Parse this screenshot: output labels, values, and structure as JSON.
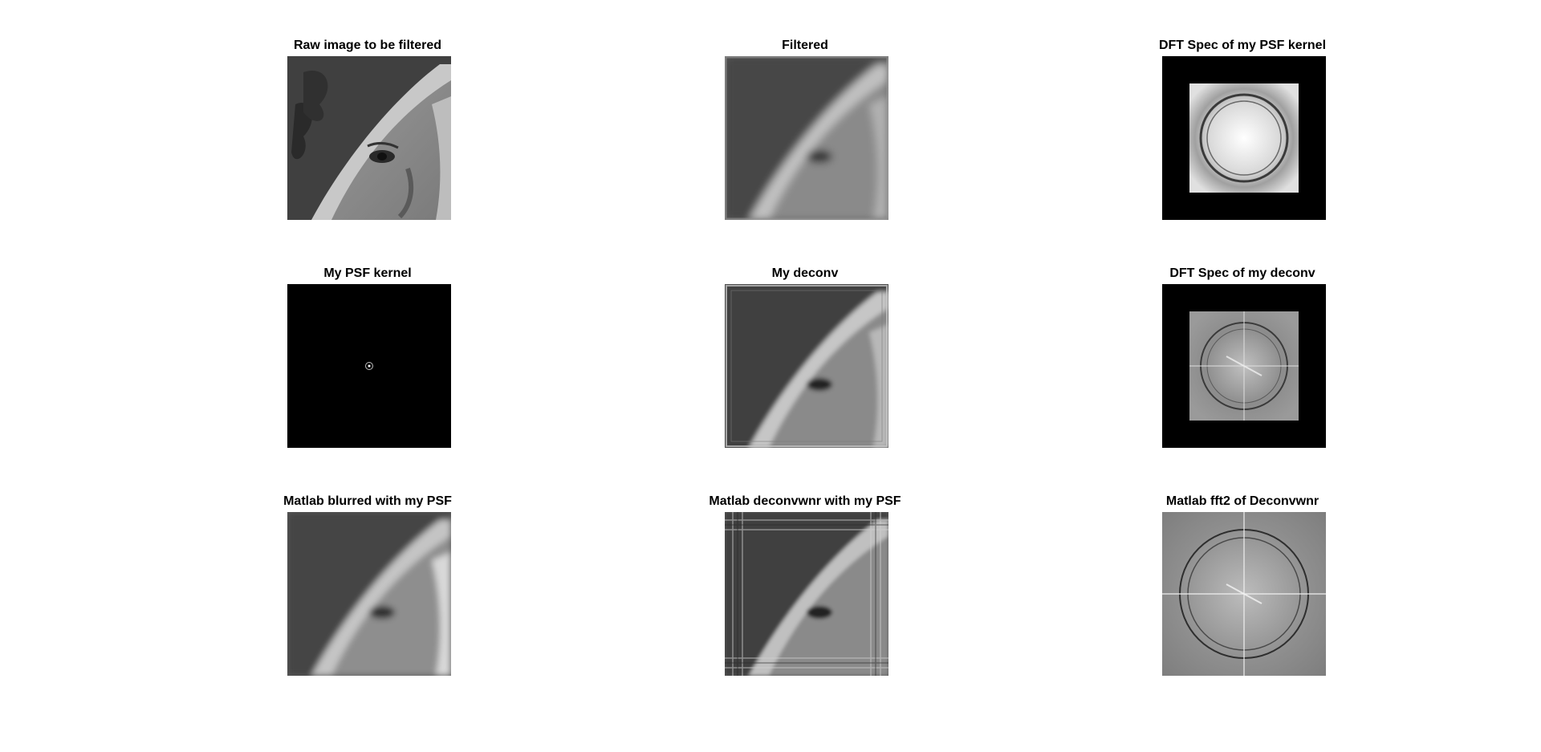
{
  "figure": {
    "panels": [
      {
        "title": "Raw image to be filtered"
      },
      {
        "title": "Filtered"
      },
      {
        "title": "DFT Spec of my PSF kernel"
      },
      {
        "title": "My PSF kernel"
      },
      {
        "title": "My deconv"
      },
      {
        "title": "DFT Spec of my deconv"
      },
      {
        "title": "Matlab blurred with my PSF"
      },
      {
        "title": "Matlab deconvwnr with my PSF"
      },
      {
        "title": "Matlab fft2 of Deconvwnr"
      }
    ]
  }
}
